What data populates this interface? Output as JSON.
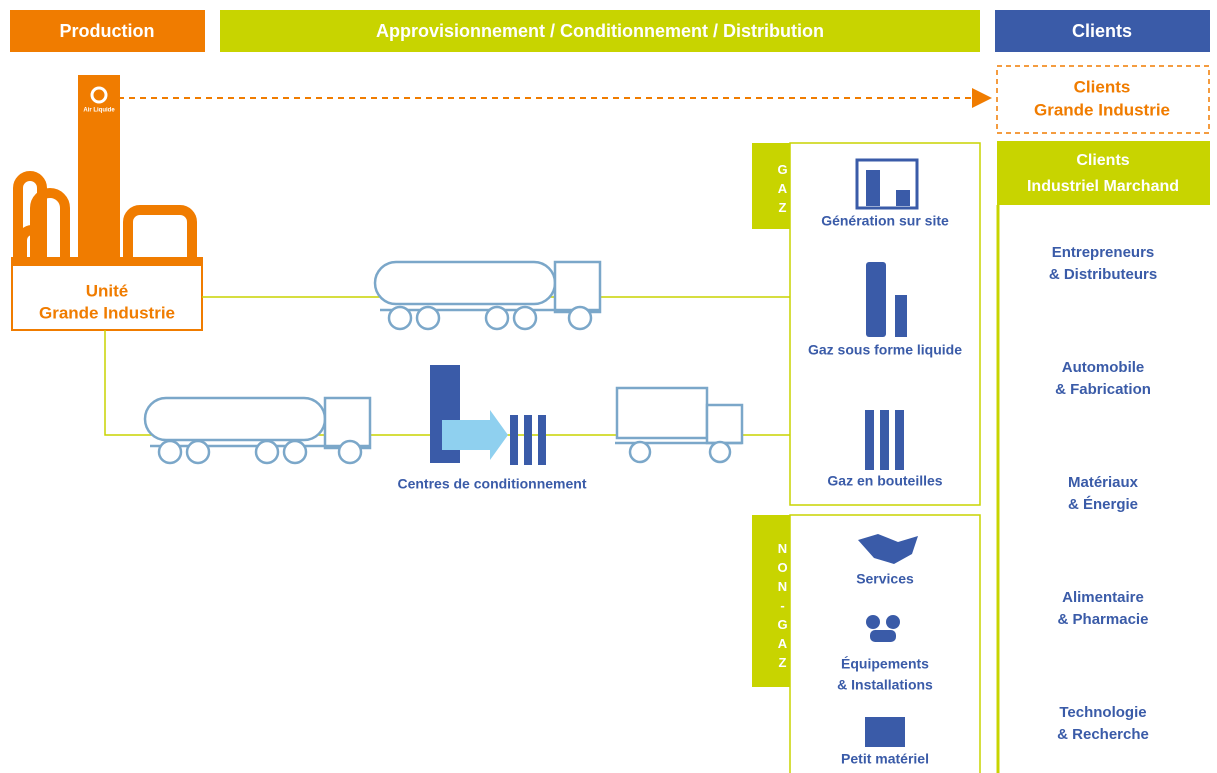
{
  "header": {
    "production": "Production",
    "distribution": "Approvisionnement / Conditionnement / Distribution",
    "clients": "Clients"
  },
  "logo": "Air Liquide",
  "production_unit": [
    "Unité",
    "Grande Industrie"
  ],
  "packaging_centers": "Centres de conditionnement",
  "gas": {
    "label": "GAZ",
    "items": [
      "Génération sur site",
      "Gaz sous forme liquide",
      "Gaz en bouteilles"
    ]
  },
  "non_gas": {
    "label": "NON-GAZ",
    "items": [
      [
        "Services"
      ],
      [
        "Équipements",
        "& Installations"
      ],
      [
        "Petit matériel"
      ]
    ]
  },
  "clients": {
    "large_industry": [
      "Clients",
      "Grande Industrie"
    ],
    "merchant": [
      "Clients",
      "Industriel Marchand"
    ],
    "segments": [
      [
        "Entrepreneurs",
        "& Distributeurs"
      ],
      [
        "Automobile",
        "& Fabrication"
      ],
      [
        "Matériaux",
        "& Énergie"
      ],
      [
        "Alimentaire",
        "& Pharmacie"
      ],
      [
        "Technologie",
        "& Recherche"
      ]
    ]
  }
}
